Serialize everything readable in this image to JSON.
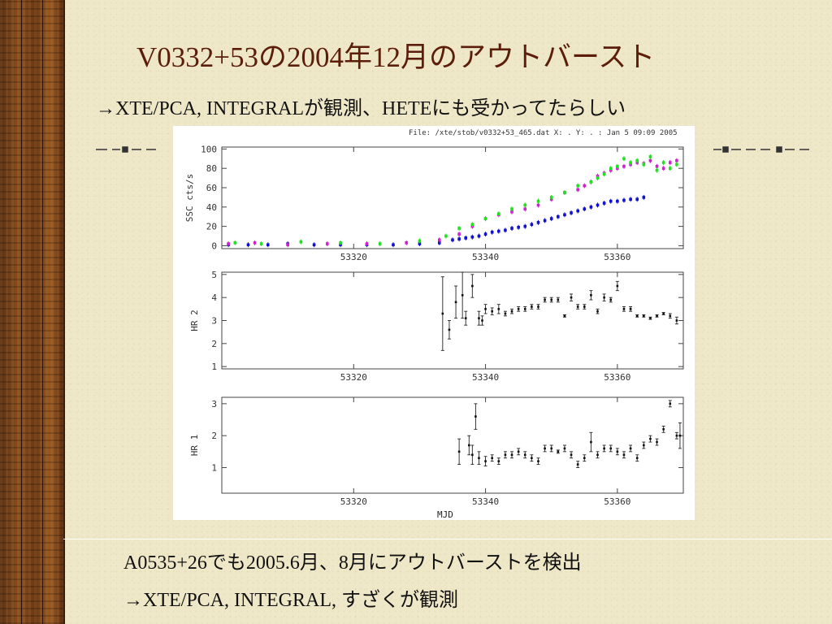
{
  "slide": {
    "title": "V0332+53の2004年12月のアウトバースト",
    "subtitle": "→XTE/PCA, INTEGRALが観測、HETEにも受かってたらしい",
    "bottom_line1": "A0535+26でも2005.6月、8月にアウトバーストを検出",
    "bottom_line2": "→XTE/PCA, INTEGRAL, すざくが観測",
    "colors": {
      "title": "#5b1e0b",
      "text": "#111111",
      "wood": "#7a4118",
      "background": "#efe8c8"
    }
  },
  "figure": {
    "header": "File: /xte/stob/v0332+53_465.dat  X: . Y: . : Jan  5 09:09 2005",
    "xlabel": "MJD"
  },
  "chart_data": [
    {
      "type": "scatter",
      "panel": "top",
      "ylabel": "SSC cts/s",
      "xlim": [
        53300,
        53370
      ],
      "ylim": [
        -3,
        102
      ],
      "xticks": [
        53320,
        53340,
        53360
      ],
      "yticks": [
        0,
        20,
        40,
        60,
        80,
        100
      ],
      "series": [
        {
          "color": "#1010d0",
          "x": [
            53301,
            53304,
            53307,
            53310,
            53314,
            53318,
            53322,
            53326,
            53330,
            53333,
            53335,
            53336,
            53337,
            53338,
            53339,
            53340,
            53341,
            53342,
            53343,
            53344,
            53345,
            53346,
            53347,
            53348,
            53349,
            53350,
            53351,
            53352,
            53353,
            53354,
            53355,
            53356,
            53357,
            53358,
            53359,
            53360,
            53361,
            53362,
            53363,
            53364
          ],
          "y": [
            1,
            1,
            1,
            2,
            1,
            1,
            1,
            1,
            2,
            3,
            6,
            7,
            8,
            9,
            10,
            12,
            14,
            15,
            16,
            18,
            19,
            20,
            22,
            24,
            26,
            28,
            30,
            32,
            34,
            36,
            38,
            40,
            42,
            44,
            46,
            46,
            47,
            48,
            48,
            50
          ]
        },
        {
          "color": "#d020d0",
          "x": [
            53301,
            53305,
            53310,
            53316,
            53322,
            53328,
            53333,
            53336,
            53338,
            53340,
            53342,
            53344,
            53346,
            53348,
            53350,
            53352,
            53354,
            53355,
            53356,
            53357,
            53358,
            53359,
            53360,
            53361,
            53362,
            53363,
            53364,
            53365,
            53366,
            53367,
            53368,
            53369
          ],
          "y": [
            2,
            3,
            1,
            2,
            2,
            3,
            6,
            12,
            20,
            28,
            32,
            35,
            38,
            42,
            48,
            55,
            58,
            62,
            66,
            72,
            75,
            78,
            80,
            82,
            84,
            86,
            85,
            88,
            82,
            80,
            86,
            88
          ]
        },
        {
          "color": "#20e020",
          "x": [
            53302,
            53306,
            53312,
            53318,
            53324,
            53330,
            53334,
            53336,
            53338,
            53340,
            53342,
            53344,
            53346,
            53348,
            53350,
            53352,
            53354,
            53356,
            53357,
            53358,
            53359,
            53360,
            53361,
            53362,
            53363,
            53364,
            53365,
            53366,
            53367,
            53368,
            53369
          ],
          "y": [
            3,
            2,
            4,
            3,
            2,
            5,
            10,
            18,
            22,
            28,
            33,
            38,
            42,
            46,
            50,
            55,
            62,
            66,
            70,
            74,
            80,
            82,
            90,
            86,
            88,
            84,
            92,
            78,
            86,
            80,
            84
          ]
        }
      ]
    },
    {
      "type": "scatter",
      "panel": "middle",
      "ylabel": "HR 2",
      "xlim": [
        53300,
        53370
      ],
      "ylim": [
        0.9,
        5.1
      ],
      "xticks": [
        53320,
        53340,
        53360
      ],
      "yticks": [
        1,
        2,
        3,
        4,
        5
      ],
      "x": [
        53333.5,
        53334.5,
        53335.5,
        53336.5,
        53337,
        53338,
        53339,
        53339.5,
        53340,
        53341,
        53342,
        53343,
        53344,
        53345,
        53346,
        53347,
        53348,
        53349,
        53350,
        53351,
        53352,
        53353,
        53354,
        53355,
        53356,
        53357,
        53358,
        53359,
        53360,
        53361,
        53362,
        53363,
        53364,
        53365,
        53366,
        53367,
        53368,
        53369
      ],
      "y": [
        3.3,
        2.6,
        3.8,
        4.1,
        3.1,
        4.5,
        3.1,
        3.0,
        3.5,
        3.4,
        3.5,
        3.3,
        3.4,
        3.5,
        3.5,
        3.6,
        3.6,
        3.9,
        3.9,
        3.9,
        3.2,
        4.0,
        3.6,
        3.6,
        4.1,
        3.4,
        4.0,
        3.9,
        4.5,
        3.5,
        3.5,
        3.2,
        3.2,
        3.1,
        3.2,
        3.3,
        3.2,
        3.0
      ],
      "err": [
        1.6,
        0.4,
        0.7,
        1.0,
        0.3,
        0.5,
        0.3,
        0.2,
        0.2,
        0.15,
        0.2,
        0.1,
        0.1,
        0.1,
        0.1,
        0.1,
        0.1,
        0.1,
        0.1,
        0.1,
        0.05,
        0.15,
        0.1,
        0.1,
        0.2,
        0.1,
        0.15,
        0.1,
        0.2,
        0.1,
        0.1,
        0.05,
        0.05,
        0.05,
        0.05,
        0.05,
        0.1,
        0.15
      ]
    },
    {
      "type": "scatter",
      "panel": "bottom",
      "ylabel": "HR 1",
      "xlim": [
        53300,
        53370
      ],
      "ylim": [
        0.2,
        3.2
      ],
      "xticks": [
        53320,
        53340,
        53360
      ],
      "yticks": [
        1,
        2,
        3
      ],
      "x": [
        53336,
        53337.5,
        53338,
        53338.5,
        53339,
        53340,
        53341,
        53342,
        53343,
        53344,
        53345,
        53346,
        53347,
        53348,
        53349,
        53350,
        53351,
        53352,
        53353,
        53354,
        53355,
        53356,
        53357,
        53358,
        53359,
        53360,
        53361,
        53362,
        53363,
        53364,
        53365,
        53366,
        53367,
        53368,
        53369,
        53369.5
      ],
      "y": [
        1.5,
        1.7,
        1.4,
        2.6,
        1.3,
        1.2,
        1.3,
        1.2,
        1.4,
        1.4,
        1.5,
        1.4,
        1.3,
        1.2,
        1.6,
        1.6,
        1.5,
        1.6,
        1.4,
        1.1,
        1.3,
        1.8,
        1.4,
        1.6,
        1.6,
        1.5,
        1.4,
        1.6,
        1.3,
        1.7,
        1.9,
        1.8,
        2.2,
        3.0,
        2.0,
        2.0
      ],
      "err": [
        0.4,
        0.3,
        0.3,
        0.4,
        0.2,
        0.15,
        0.1,
        0.1,
        0.1,
        0.1,
        0.1,
        0.1,
        0.1,
        0.1,
        0.1,
        0.1,
        0.05,
        0.1,
        0.1,
        0.1,
        0.1,
        0.3,
        0.1,
        0.1,
        0.1,
        0.1,
        0.1,
        0.1,
        0.1,
        0.1,
        0.1,
        0.1,
        0.1,
        0.1,
        0.1,
        0.4
      ]
    }
  ]
}
